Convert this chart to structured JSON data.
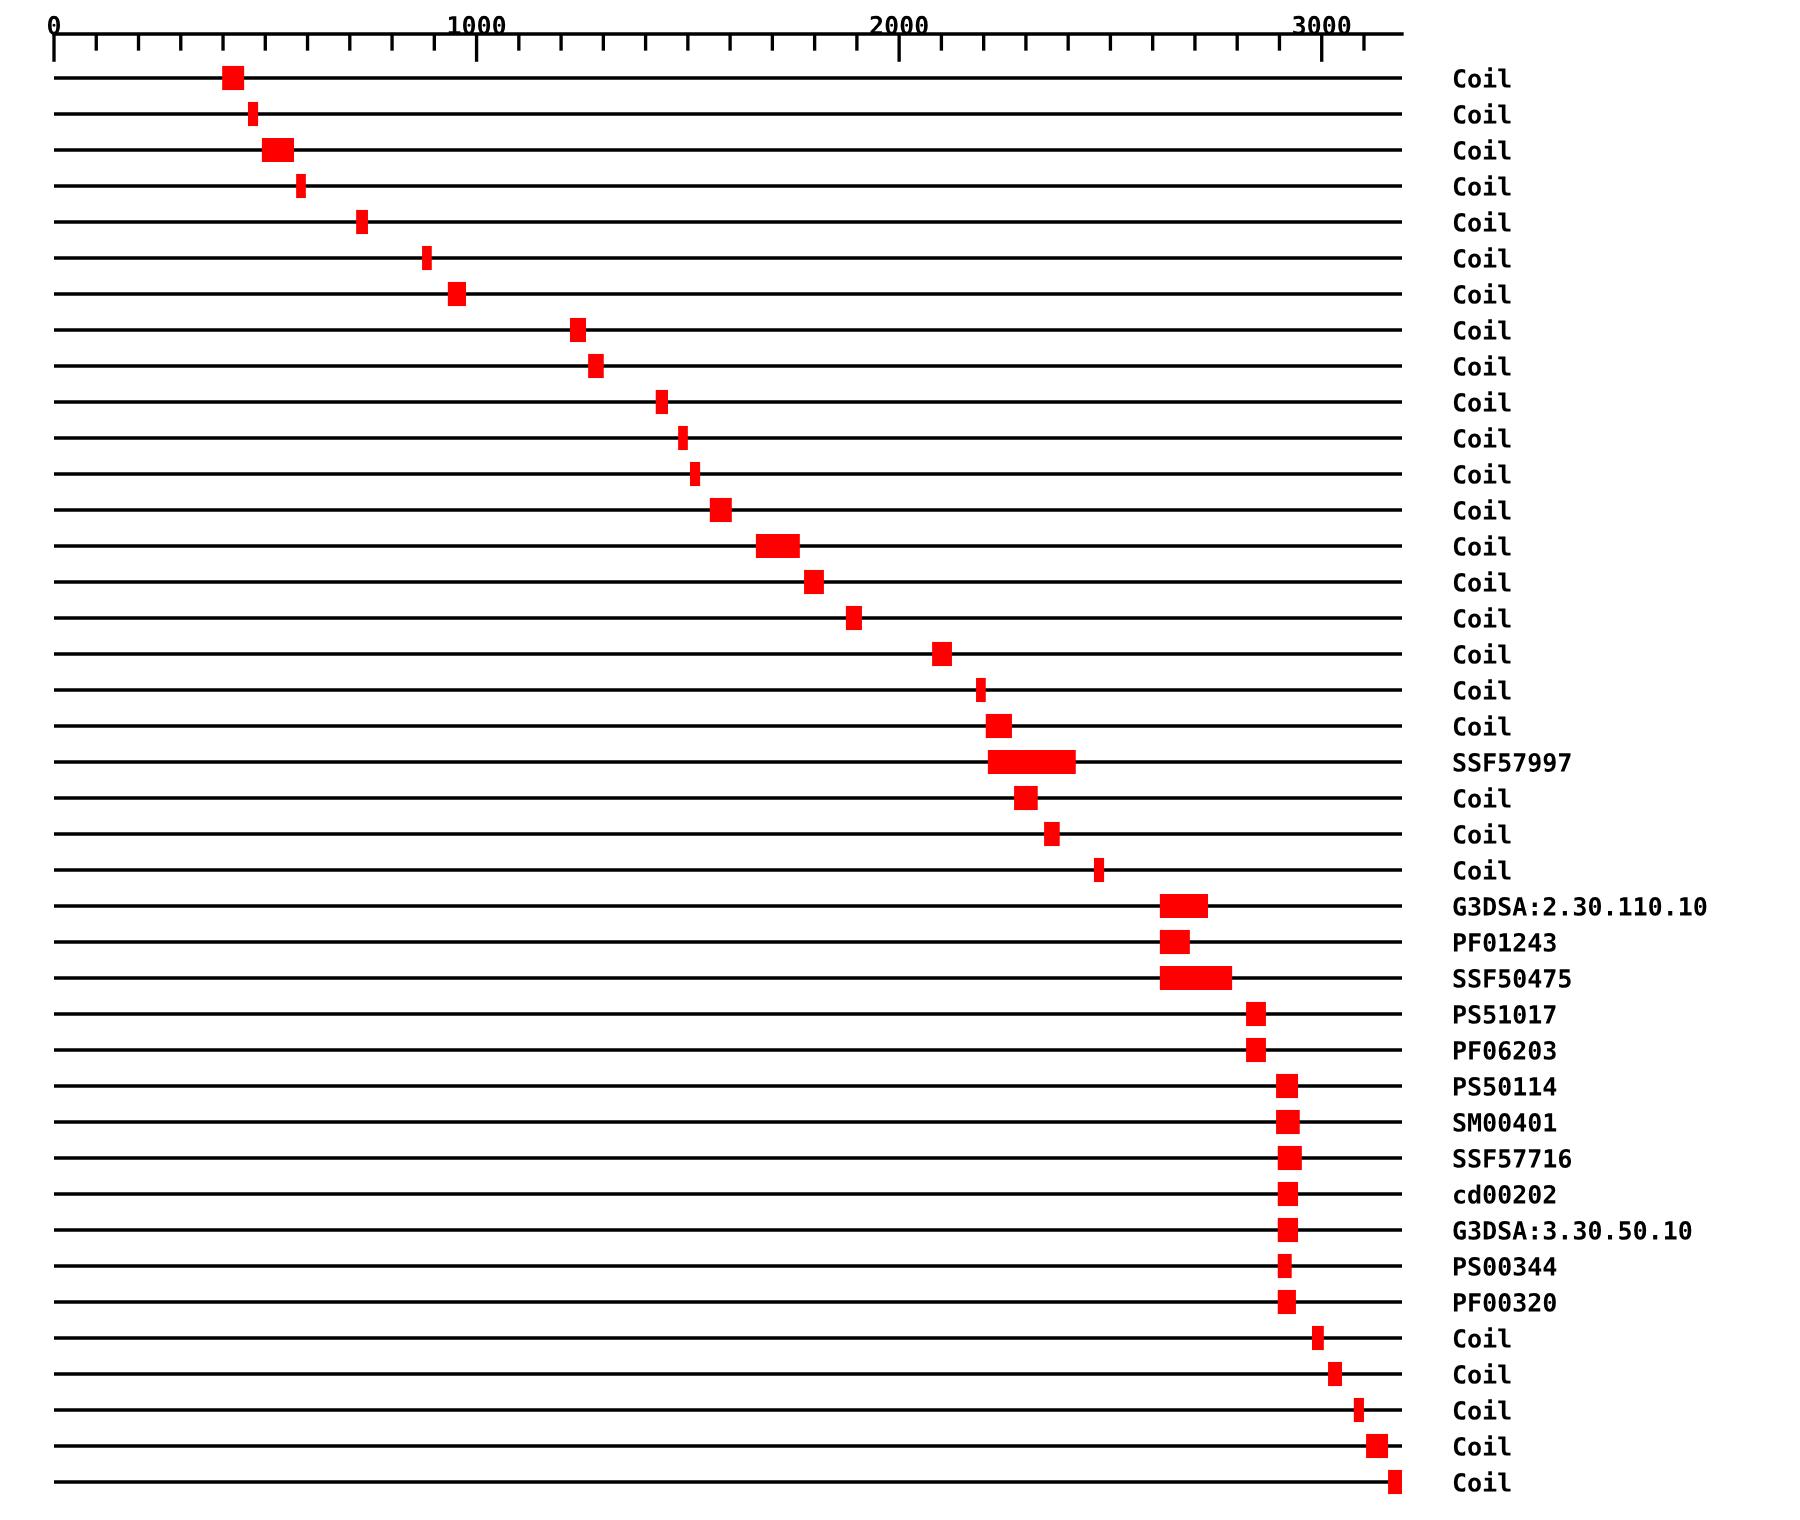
{
  "chart_data": {
    "type": "bar",
    "orientation": "horizontal",
    "categories": [
      "Coil",
      "Coil",
      "Coil",
      "Coil",
      "Coil",
      "Coil",
      "Coil",
      "Coil",
      "Coil",
      "Coil",
      "Coil",
      "Coil",
      "Coil",
      "Coil",
      "Coil",
      "Coil",
      "Coil",
      "Coil",
      "Coil",
      "SSF57997",
      "Coil",
      "Coil",
      "Coil",
      "G3DSA:2.30.110.10",
      "PF01243",
      "SSF50475",
      "PS51017",
      "PF06203",
      "PS50114",
      "SM00401",
      "SSF57716",
      "cd00202",
      "G3DSA:3.30.50.10",
      "PS00344",
      "PF00320",
      "Coil",
      "Coil",
      "Coil",
      "Coil",
      "Coil"
    ],
    "base": [
      398,
      459,
      492,
      573,
      715,
      871,
      932,
      1221,
      1264,
      1424,
      1477,
      1505,
      1552,
      1661,
      1775,
      1874,
      2078,
      2182,
      2205,
      2210,
      2272,
      2343,
      2461,
      2617,
      2617,
      2617,
      2821,
      2821,
      2892,
      2892,
      2896,
      2896,
      2896,
      2896,
      2896,
      2977,
      3015,
      3076,
      3105,
      3157
    ],
    "values": [
      52,
      24,
      76,
      23,
      28,
      23,
      43,
      38,
      37,
      29,
      23,
      24,
      52,
      104,
      47,
      38,
      47,
      23,
      62,
      208,
      56,
      37,
      24,
      114,
      71,
      171,
      47,
      47,
      52,
      56,
      57,
      48,
      48,
      33,
      43,
      28,
      33,
      24,
      52,
      33
    ],
    "color": "#ff0000",
    "xlim": [
      0,
      3190
    ],
    "xticks": [
      0,
      {
        "value": 100,
        "label": null
      },
      {
        "value": 200,
        "label": null
      },
      {
        "value": 300,
        "label": null
      },
      {
        "value": 400,
        "label": null
      },
      {
        "value": 500,
        "label": null
      },
      {
        "value": 600,
        "label": null
      },
      {
        "value": 700,
        "label": null
      },
      {
        "value": 800,
        "label": null
      },
      {
        "value": 900,
        "label": null
      },
      1000,
      {
        "value": 1100,
        "label": null
      },
      {
        "value": 1200,
        "label": null
      },
      {
        "value": 1300,
        "label": null
      },
      {
        "value": 1400,
        "label": null
      },
      {
        "value": 1500,
        "label": null
      },
      {
        "value": 1600,
        "label": null
      },
      {
        "value": 1700,
        "label": null
      },
      {
        "value": 1800,
        "label": null
      },
      {
        "value": 1900,
        "label": null
      },
      2000,
      {
        "value": 2100,
        "label": null
      },
      {
        "value": 2200,
        "label": null
      },
      {
        "value": 2300,
        "label": null
      },
      {
        "value": 2400,
        "label": null
      },
      {
        "value": 2500,
        "label": null
      },
      {
        "value": 2600,
        "label": null
      },
      {
        "value": 2700,
        "label": null
      },
      {
        "value": 2800,
        "label": null
      },
      {
        "value": 2900,
        "label": null
      },
      3000,
      {
        "value": 3100,
        "label": null
      }
    ],
    "grid": "y"
  }
}
